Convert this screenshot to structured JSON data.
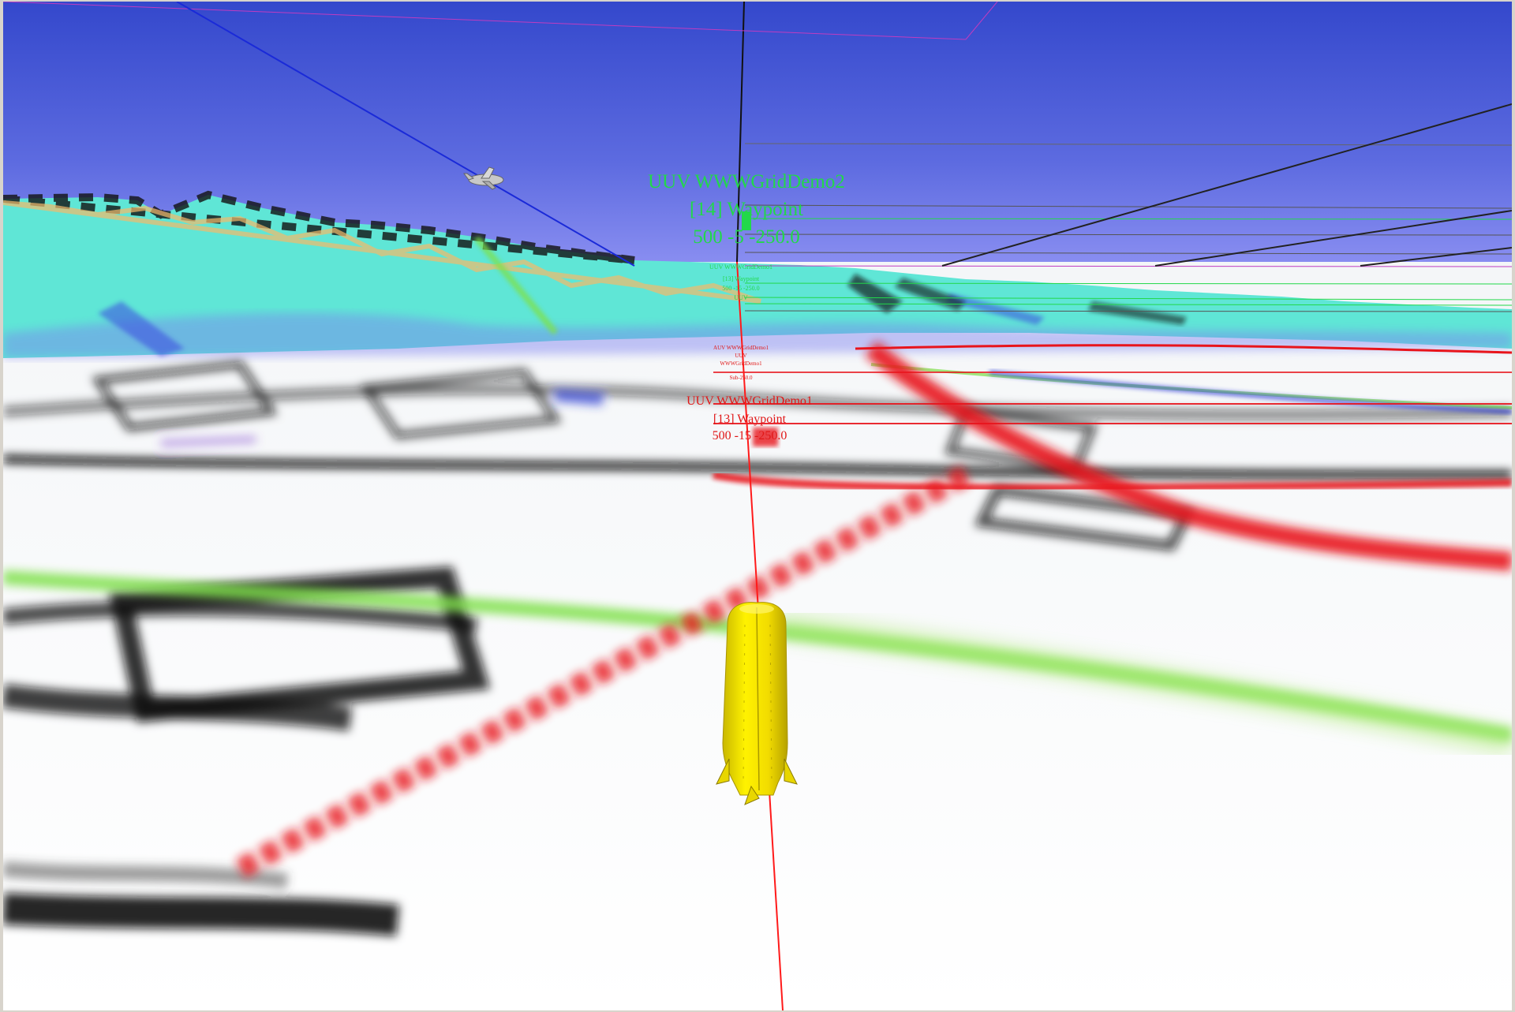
{
  "scene": {
    "sky_color_top": "#3a50d0",
    "sky_color_horizon": "#8a8ef0",
    "terrain_color": "#5fe6d6",
    "seafloor_color": "#ffffff",
    "track_colors": {
      "red": "#e8141c",
      "green": "#7ee04a",
      "black": "#111111",
      "blue": "#2b3bd6"
    }
  },
  "vehicles": [
    {
      "id": "uuv-2",
      "label_color": "#22d84a",
      "name": "UUV WWWGridDemo2",
      "waypoint": "[14] Waypoint",
      "position": "500 -5 -250.0",
      "sub_lines": [
        "UUV WWWGridDemo1",
        "[13] Waypoint",
        "500 -15 -250.0",
        "UUV"
      ]
    },
    {
      "id": "uuv-1",
      "label_color": "#e01818",
      "name": "UUV WWWGridDemo1",
      "waypoint": "[13] Waypoint",
      "position": "500 -15 -250.0",
      "sub_lines": [
        "AUV WWWGridDemo1",
        "UUV",
        "WWWGridDemo1",
        "Sub-250.0"
      ]
    }
  ],
  "objects": {
    "vehicle_body": {
      "name": "yellow-uuv",
      "color": "#ffe800"
    },
    "aircraft": {
      "name": "aircraft",
      "color": "#c8c8c8"
    }
  }
}
